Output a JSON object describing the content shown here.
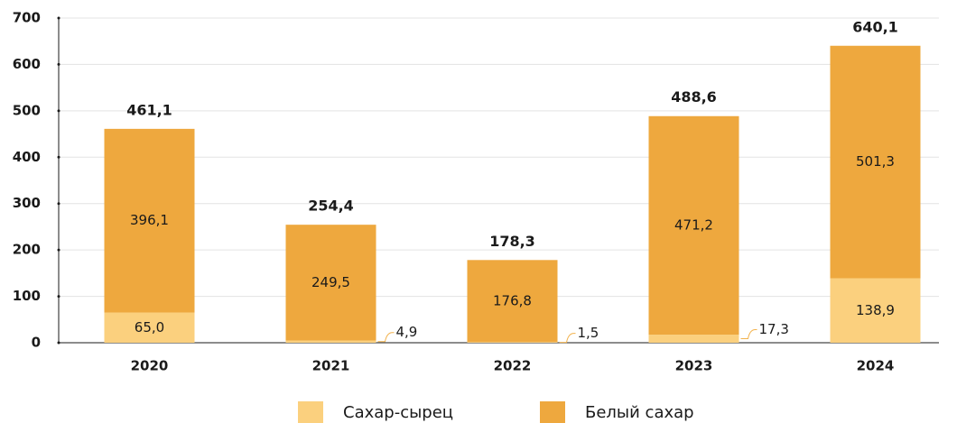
{
  "chart_data": {
    "type": "stacked_bar",
    "categories": [
      "2020",
      "2021",
      "2022",
      "2023",
      "2024"
    ],
    "series": [
      {
        "name": "Сахар-сырец",
        "color": "#fbd07e",
        "values": [
          65.0,
          4.9,
          1.5,
          17.3,
          138.9
        ],
        "value_labels": [
          "65,0",
          "4,9",
          "1,5",
          "17,3",
          "138,9"
        ]
      },
      {
        "name": "Белый сахар",
        "color": "#eea83e",
        "values": [
          396.1,
          249.5,
          176.8,
          471.2,
          501.3
        ],
        "value_labels": [
          "396,1",
          "249,5",
          "176,8",
          "471,2",
          "501,3"
        ]
      }
    ],
    "totals": [
      461.1,
      254.4,
      178.3,
      488.6,
      640.1
    ],
    "total_labels": [
      "461,1",
      "254,4",
      "178,3",
      "488,6",
      "640,1"
    ],
    "ylim": [
      0,
      700
    ],
    "yticks": [
      0,
      100,
      200,
      300,
      400,
      500,
      600,
      700
    ],
    "grid": true
  }
}
